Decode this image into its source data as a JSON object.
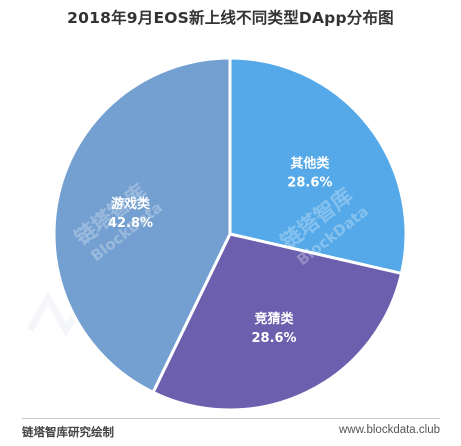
{
  "chart_data": {
    "type": "pie",
    "title": "2018年9月EOS新上线不同类型DApp分布图",
    "slices": [
      {
        "label": "其他类",
        "value": 28.6,
        "display": "28.6%",
        "color": "#55a9e8"
      },
      {
        "label": "竞猜类",
        "value": 28.6,
        "display": "28.6%",
        "color": "#6b5fae"
      },
      {
        "label": "游戏类",
        "value": 42.8,
        "display": "42.8%",
        "color": "#739fd1"
      }
    ],
    "start_angle_deg": 0,
    "direction": "clockwise"
  },
  "watermark": {
    "brand": "链塔智库",
    "brand_en": "BlockData"
  },
  "footer": {
    "left": "链塔智库研究绘制",
    "right": "www.blockdata.club"
  }
}
